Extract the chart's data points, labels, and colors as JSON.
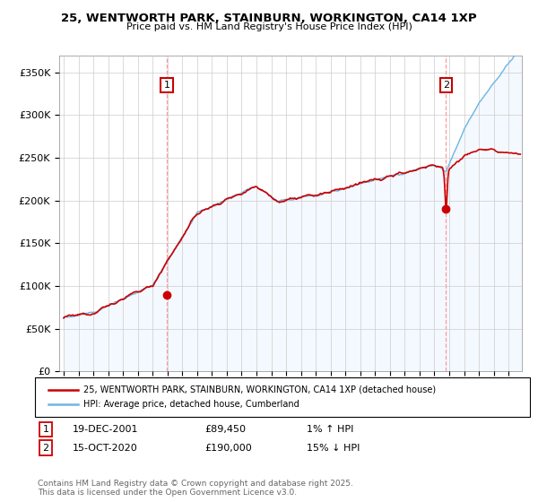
{
  "title": "25, WENTWORTH PARK, STAINBURN, WORKINGTON, CA14 1XP",
  "subtitle": "Price paid vs. HM Land Registry's House Price Index (HPI)",
  "ylim": [
    0,
    370000
  ],
  "yticks": [
    0,
    50000,
    100000,
    150000,
    200000,
    250000,
    300000,
    350000
  ],
  "hpi_color": "#6db6e0",
  "hpi_fill_color": "#ddeeff",
  "price_color": "#cc0000",
  "vline_color": "#ff9999",
  "marker1_x": 2001.97,
  "marker1_y": 89450,
  "marker2_x": 2020.79,
  "marker2_y": 190000,
  "marker1_date": "19-DEC-2001",
  "marker1_price": "£89,450",
  "marker1_label": "1% ↑ HPI",
  "marker2_date": "15-OCT-2020",
  "marker2_price": "£190,000",
  "marker2_label": "15% ↓ HPI",
  "legend_line1": "25, WENTWORTH PARK, STAINBURN, WORKINGTON, CA14 1XP (detached house)",
  "legend_line2": "HPI: Average price, detached house, Cumberland",
  "footnote": "Contains HM Land Registry data © Crown copyright and database right 2025.\nThis data is licensed under the Open Government Licence v3.0.",
  "background_color": "#ffffff",
  "grid_color": "#cccccc",
  "xlim_left": 1994.7,
  "xlim_right": 2025.9
}
